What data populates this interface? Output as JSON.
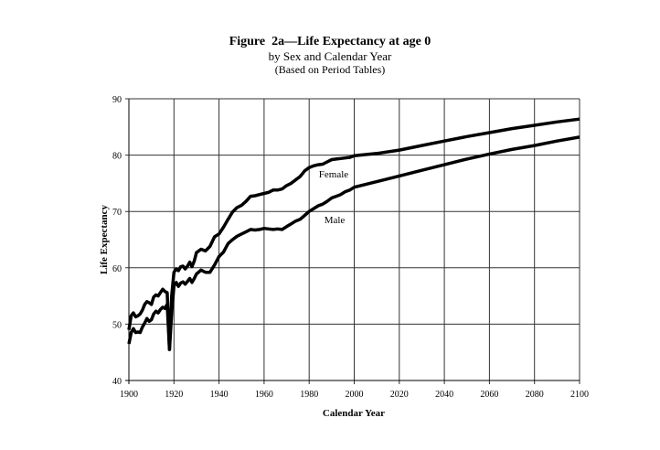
{
  "chart_data": {
    "type": "line",
    "title": "Figure  2a—Life Expectancy at age 0",
    "subtitle": "by Sex and Calendar Year",
    "subtitle2": "(Based on Period Tables)",
    "xlabel": "Calendar Year",
    "ylabel": "Life Expectancy",
    "xlim": [
      1900,
      2100
    ],
    "ylim": [
      40,
      90
    ],
    "xticks": [
      "1900",
      "1920",
      "1940",
      "1960",
      "1980",
      "2000",
      "2020",
      "2040",
      "2060",
      "2080",
      "2100"
    ],
    "yticks": [
      "40",
      "50",
      "60",
      "70",
      "80",
      "90"
    ],
    "grid": true,
    "legend": "none",
    "series": [
      {
        "name": "Female",
        "x": [
          1900,
          1901,
          1902,
          1903,
          1904,
          1905,
          1906,
          1907,
          1908,
          1909,
          1910,
          1911,
          1912,
          1913,
          1914,
          1915,
          1916,
          1917,
          1918,
          1919,
          1920,
          1921,
          1922,
          1923,
          1924,
          1925,
          1926,
          1927,
          1928,
          1929,
          1930,
          1932,
          1934,
          1936,
          1938,
          1940,
          1942,
          1944,
          1946,
          1948,
          1950,
          1952,
          1954,
          1956,
          1958,
          1960,
          1962,
          1964,
          1966,
          1968,
          1970,
          1972,
          1974,
          1976,
          1978,
          1980,
          1982,
          1984,
          1986,
          1988,
          1990,
          1992,
          1994,
          1996,
          1998,
          2000,
          2010,
          2020,
          2030,
          2040,
          2050,
          2060,
          2070,
          2080,
          2090,
          2100
        ],
        "values": [
          49.0,
          51.5,
          52.0,
          51.3,
          51.5,
          51.8,
          52.5,
          53.5,
          54.0,
          53.8,
          53.5,
          54.8,
          55.2,
          55.0,
          55.6,
          56.2,
          55.8,
          55.6,
          45.5,
          55.0,
          59.2,
          59.8,
          59.5,
          60.2,
          60.3,
          59.8,
          60.3,
          61.0,
          60.2,
          61.2,
          62.7,
          63.3,
          63.0,
          63.8,
          65.5,
          66.0,
          67.2,
          68.6,
          69.9,
          70.7,
          71.1,
          71.8,
          72.7,
          72.8,
          73.0,
          73.2,
          73.4,
          73.8,
          73.8,
          74.0,
          74.6,
          75.0,
          75.6,
          76.2,
          77.2,
          77.8,
          78.1,
          78.3,
          78.4,
          78.8,
          79.2,
          79.3,
          79.4,
          79.5,
          79.6,
          79.9,
          80.3,
          80.9,
          81.7,
          82.5,
          83.3,
          84.0,
          84.7,
          85.3,
          85.9,
          86.4
        ]
      },
      {
        "name": "Male",
        "x": [
          1900,
          1901,
          1902,
          1903,
          1904,
          1905,
          1906,
          1907,
          1908,
          1909,
          1910,
          1911,
          1912,
          1913,
          1914,
          1915,
          1916,
          1917,
          1918,
          1919,
          1920,
          1921,
          1922,
          1923,
          1924,
          1925,
          1926,
          1927,
          1928,
          1929,
          1930,
          1932,
          1934,
          1936,
          1938,
          1940,
          1942,
          1944,
          1946,
          1948,
          1950,
          1952,
          1954,
          1956,
          1958,
          1960,
          1962,
          1964,
          1966,
          1968,
          1970,
          1972,
          1974,
          1976,
          1978,
          1980,
          1982,
          1984,
          1986,
          1988,
          1990,
          1992,
          1994,
          1996,
          1998,
          2000,
          2010,
          2020,
          2030,
          2040,
          2050,
          2060,
          2070,
          2080,
          2090,
          2100
        ],
        "values": [
          46.5,
          48.5,
          49.2,
          48.5,
          48.6,
          48.5,
          49.5,
          50.2,
          51.0,
          50.5,
          50.8,
          51.8,
          52.3,
          52.0,
          52.6,
          53.0,
          52.8,
          53.5,
          45.5,
          52.0,
          56.8,
          57.4,
          56.7,
          57.3,
          57.5,
          57.1,
          57.6,
          58.1,
          57.4,
          58.1,
          58.9,
          59.6,
          59.2,
          59.2,
          60.5,
          62.0,
          62.8,
          64.3,
          65.0,
          65.6,
          66.0,
          66.4,
          66.8,
          66.7,
          66.8,
          67.0,
          66.9,
          66.8,
          66.9,
          66.8,
          67.3,
          67.8,
          68.3,
          68.6,
          69.3,
          70.0,
          70.5,
          71.0,
          71.3,
          71.8,
          72.4,
          72.7,
          73.0,
          73.5,
          73.8,
          74.3,
          75.3,
          76.3,
          77.3,
          78.3,
          79.3,
          80.2,
          81.0,
          81.7,
          82.5,
          83.2
        ]
      }
    ]
  }
}
